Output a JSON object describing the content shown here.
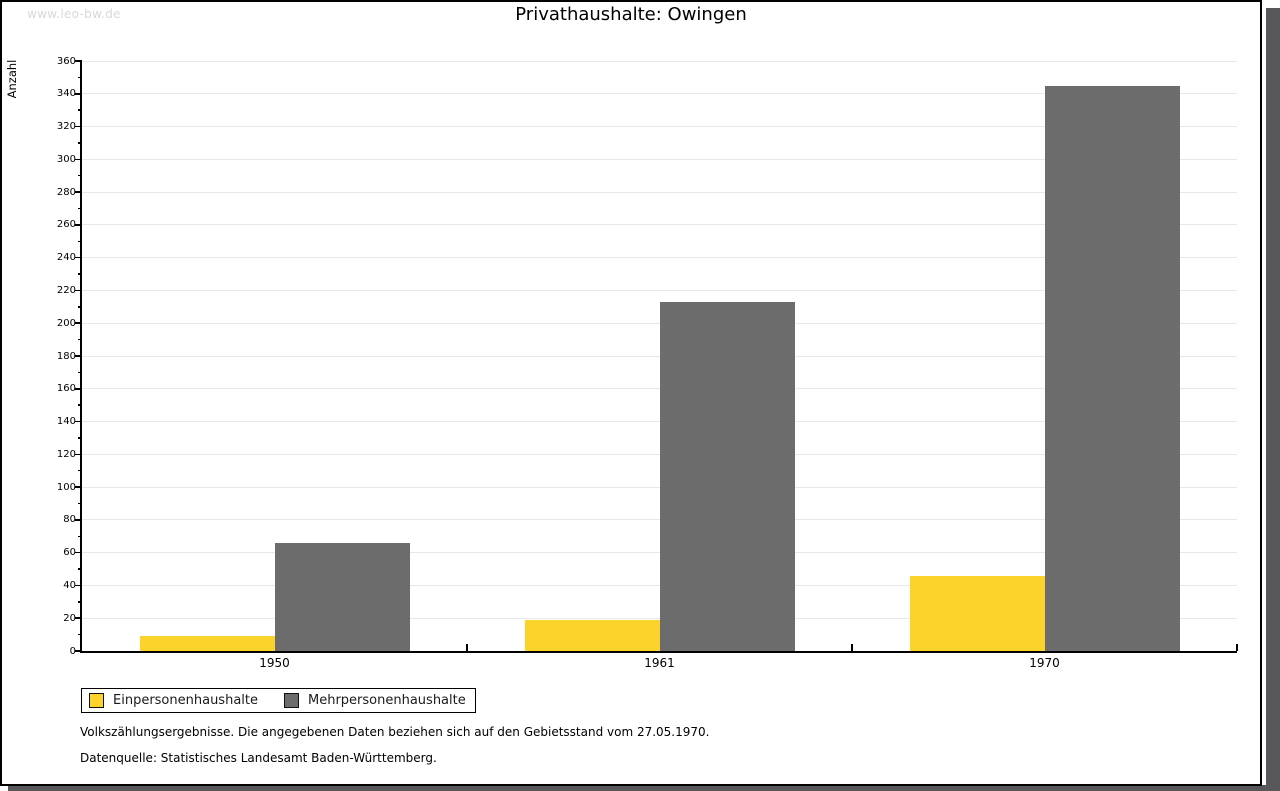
{
  "watermark": "www.leo-bw.de",
  "chart_data": {
    "type": "bar",
    "title": "Privathaushalte: Owingen",
    "ylabel": "Anzahl",
    "xlabel": "",
    "categories": [
      "1950",
      "1961",
      "1970"
    ],
    "series": [
      {
        "name": "Einpersonenhaushalte",
        "color": "#FBD32B",
        "values": [
          9,
          19,
          46
        ]
      },
      {
        "name": "Mehrpersonenhaushalte",
        "color": "#6C6C6C",
        "values": [
          66,
          213,
          345
        ]
      }
    ],
    "ylim": [
      0,
      360
    ],
    "ytick_step": 20,
    "yminor_step": 10,
    "grid": true,
    "gridline_color": "#e8e8e8",
    "legend_position": "bottom-left"
  },
  "footnotes": [
    "Volkszählungsergebnisse. Die angegebenen Daten beziehen sich auf den Gebietsstand vom 27.05.1970.",
    "Datenquelle: Statistisches Landesamt Baden-Württemberg."
  ]
}
